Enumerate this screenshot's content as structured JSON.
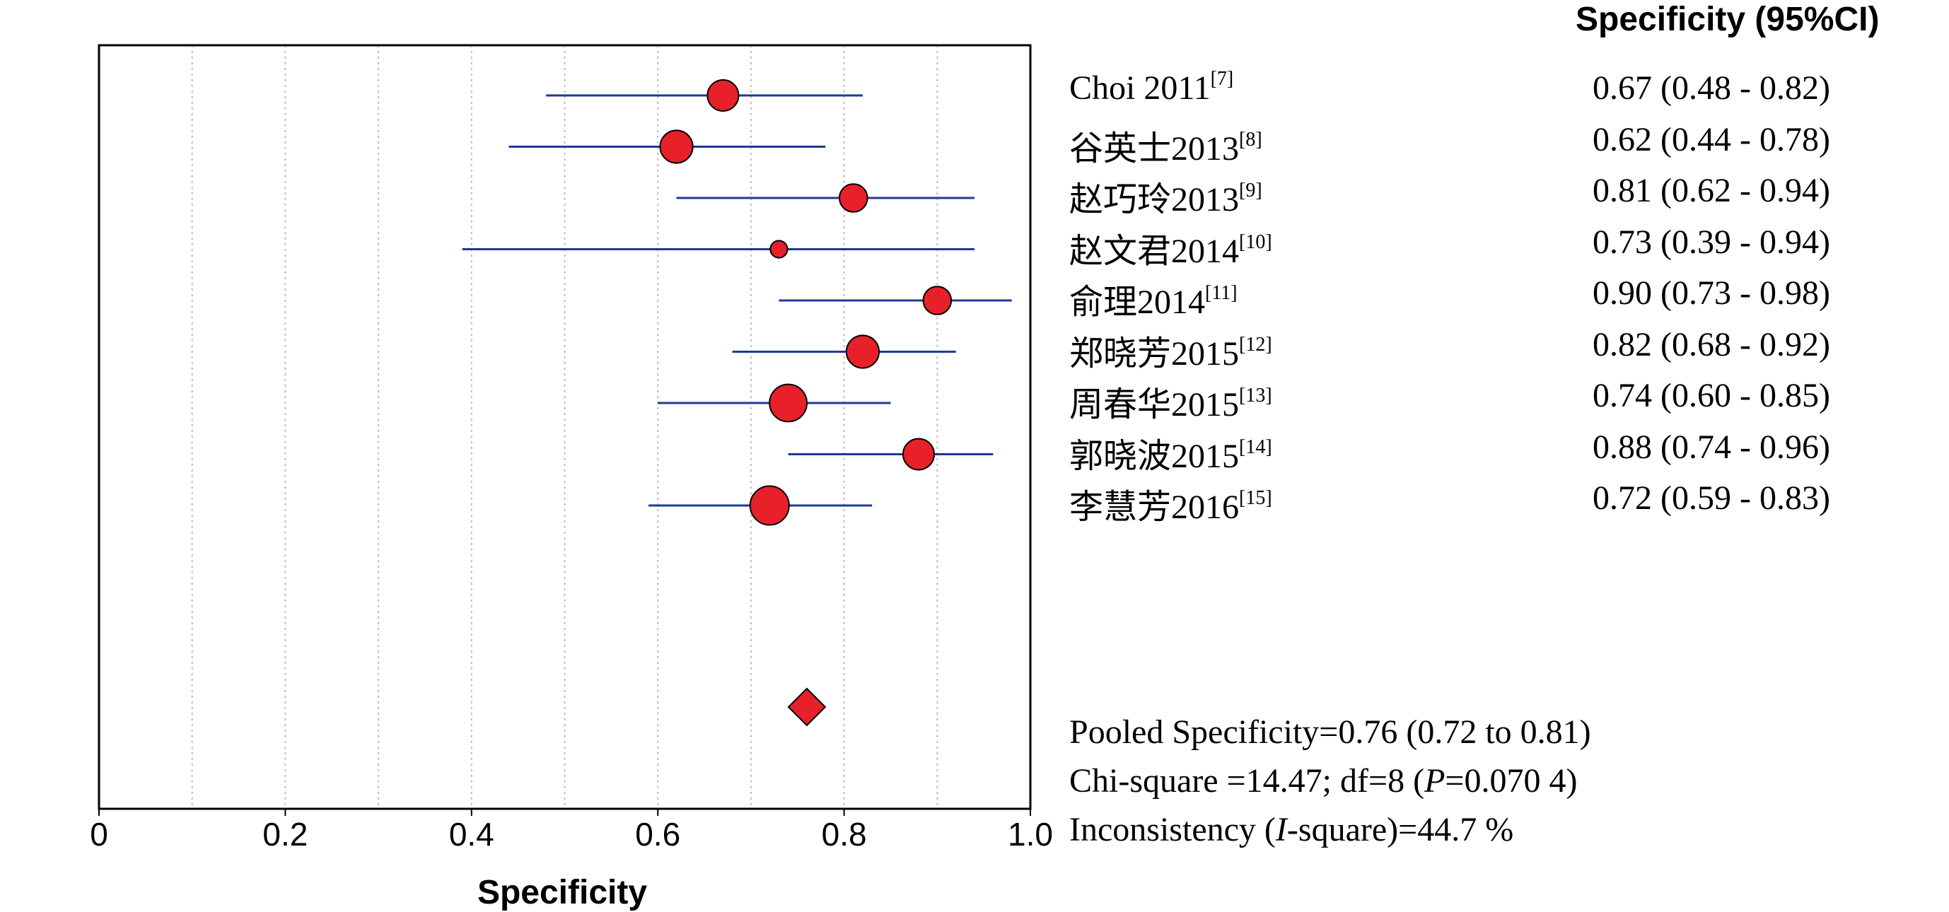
{
  "chart_data": {
    "type": "forest",
    "xlabel": "Specificity",
    "xlim": [
      0,
      1.0
    ],
    "x_ticks": [
      "0",
      "0.2",
      "0.4",
      "0.6",
      "0.8",
      "1.0"
    ],
    "grid": "vertical dotted",
    "column_header": "Specificity (95%CI)",
    "studies": [
      {
        "label": "Choi 2011",
        "ref": "[7]",
        "estimate": 0.67,
        "lower": 0.48,
        "upper": 0.82,
        "ci_text": "0.67 (0.48 - 0.82)",
        "weight": 1.0
      },
      {
        "label": "谷英士2013",
        "ref": "[8]",
        "estimate": 0.62,
        "lower": 0.44,
        "upper": 0.78,
        "ci_text": "0.62 (0.44 - 0.78)",
        "weight": 1.05
      },
      {
        "label": "赵巧玲2013",
        "ref": "[9]",
        "estimate": 0.81,
        "lower": 0.62,
        "upper": 0.94,
        "ci_text": "0.81 (0.62 - 0.94)",
        "weight": 0.9
      },
      {
        "label": "赵文君2014",
        "ref": "[10]",
        "estimate": 0.73,
        "lower": 0.39,
        "upper": 0.94,
        "ci_text": "0.73 (0.39 - 0.94)",
        "weight": 0.55
      },
      {
        "label": "俞理2014",
        "ref": "[11]",
        "estimate": 0.9,
        "lower": 0.73,
        "upper": 0.98,
        "ci_text": "0.90 (0.73 - 0.98)",
        "weight": 0.9
      },
      {
        "label": "郑晓芳2015",
        "ref": "[12]",
        "estimate": 0.82,
        "lower": 0.68,
        "upper": 0.92,
        "ci_text": "0.82 (0.68 - 0.92)",
        "weight": 1.05
      },
      {
        "label": "周春华2015",
        "ref": "[13]",
        "estimate": 0.74,
        "lower": 0.6,
        "upper": 0.85,
        "ci_text": "0.74 (0.60 - 0.85)",
        "weight": 1.2
      },
      {
        "label": "郭晓波2015",
        "ref": "[14]",
        "estimate": 0.88,
        "lower": 0.74,
        "upper": 0.96,
        "ci_text": "0.88 (0.74 - 0.96)",
        "weight": 1.0
      },
      {
        "label": "李慧芳2016",
        "ref": "[15]",
        "estimate": 0.72,
        "lower": 0.59,
        "upper": 0.83,
        "ci_text": "0.72 (0.59 - 0.83)",
        "weight": 1.25
      }
    ],
    "pooled": {
      "estimate": 0.76,
      "lower": 0.72,
      "upper": 0.81
    },
    "stats": {
      "pooled_text": "Pooled Specificity=0.76 (0.72 to 0.81)",
      "chi_prefix": "Chi-square =14.47; df=8 (",
      "chi_p_symbol": "P",
      "chi_p_value": "=0.070 4)",
      "inc_prefix": "Inconsistency (",
      "inc_symbol": "I",
      "inc_suffix": "-square)=44.7 %"
    },
    "colors": {
      "marker": "#e8202a",
      "ci_line": "#1f3a93",
      "grid": "#bdbdbd"
    }
  }
}
